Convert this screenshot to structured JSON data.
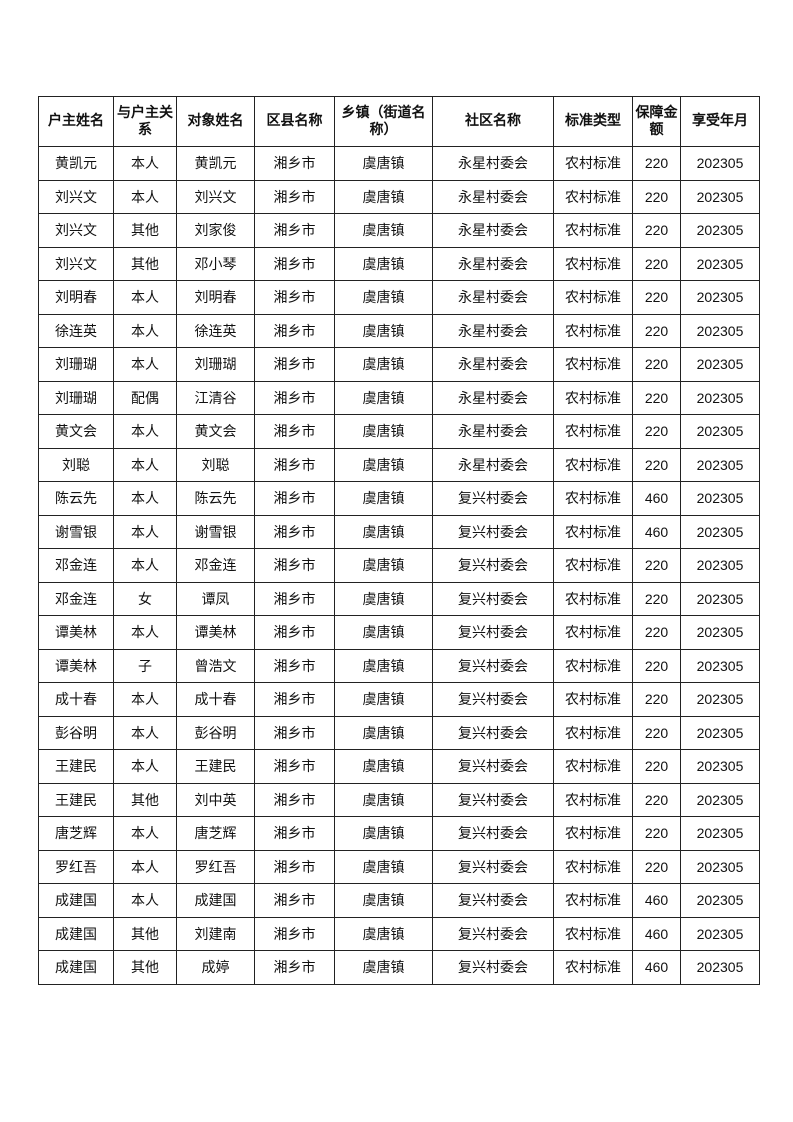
{
  "table": {
    "headers": [
      "户主姓名",
      "与户主关系",
      "对象姓名",
      "区县名称",
      "乡镇（街道名称）",
      "社区名称",
      "标准类型",
      "保障金额",
      "享受年月"
    ],
    "rows": [
      [
        "黄凯元",
        "本人",
        "黄凯元",
        "湘乡市",
        "虞唐镇",
        "永星村委会",
        "农村标准",
        "220",
        "202305"
      ],
      [
        "刘兴文",
        "本人",
        "刘兴文",
        "湘乡市",
        "虞唐镇",
        "永星村委会",
        "农村标准",
        "220",
        "202305"
      ],
      [
        "刘兴文",
        "其他",
        "刘家俊",
        "湘乡市",
        "虞唐镇",
        "永星村委会",
        "农村标准",
        "220",
        "202305"
      ],
      [
        "刘兴文",
        "其他",
        "邓小琴",
        "湘乡市",
        "虞唐镇",
        "永星村委会",
        "农村标准",
        "220",
        "202305"
      ],
      [
        "刘明春",
        "本人",
        "刘明春",
        "湘乡市",
        "虞唐镇",
        "永星村委会",
        "农村标准",
        "220",
        "202305"
      ],
      [
        "徐连英",
        "本人",
        "徐连英",
        "湘乡市",
        "虞唐镇",
        "永星村委会",
        "农村标准",
        "220",
        "202305"
      ],
      [
        "刘珊瑚",
        "本人",
        "刘珊瑚",
        "湘乡市",
        "虞唐镇",
        "永星村委会",
        "农村标准",
        "220",
        "202305"
      ],
      [
        "刘珊瑚",
        "配偶",
        "江清谷",
        "湘乡市",
        "虞唐镇",
        "永星村委会",
        "农村标准",
        "220",
        "202305"
      ],
      [
        "黄文会",
        "本人",
        "黄文会",
        "湘乡市",
        "虞唐镇",
        "永星村委会",
        "农村标准",
        "220",
        "202305"
      ],
      [
        "刘聪",
        "本人",
        "刘聪",
        "湘乡市",
        "虞唐镇",
        "永星村委会",
        "农村标准",
        "220",
        "202305"
      ],
      [
        "陈云先",
        "本人",
        "陈云先",
        "湘乡市",
        "虞唐镇",
        "复兴村委会",
        "农村标准",
        "460",
        "202305"
      ],
      [
        "谢雪银",
        "本人",
        "谢雪银",
        "湘乡市",
        "虞唐镇",
        "复兴村委会",
        "农村标准",
        "460",
        "202305"
      ],
      [
        "邓金连",
        "本人",
        "邓金连",
        "湘乡市",
        "虞唐镇",
        "复兴村委会",
        "农村标准",
        "220",
        "202305"
      ],
      [
        "邓金连",
        "女",
        "谭凤",
        "湘乡市",
        "虞唐镇",
        "复兴村委会",
        "农村标准",
        "220",
        "202305"
      ],
      [
        "谭美林",
        "本人",
        "谭美林",
        "湘乡市",
        "虞唐镇",
        "复兴村委会",
        "农村标准",
        "220",
        "202305"
      ],
      [
        "谭美林",
        "子",
        "曾浩文",
        "湘乡市",
        "虞唐镇",
        "复兴村委会",
        "农村标准",
        "220",
        "202305"
      ],
      [
        "成十春",
        "本人",
        "成十春",
        "湘乡市",
        "虞唐镇",
        "复兴村委会",
        "农村标准",
        "220",
        "202305"
      ],
      [
        "彭谷明",
        "本人",
        "彭谷明",
        "湘乡市",
        "虞唐镇",
        "复兴村委会",
        "农村标准",
        "220",
        "202305"
      ],
      [
        "王建民",
        "本人",
        "王建民",
        "湘乡市",
        "虞唐镇",
        "复兴村委会",
        "农村标准",
        "220",
        "202305"
      ],
      [
        "王建民",
        "其他",
        "刘中英",
        "湘乡市",
        "虞唐镇",
        "复兴村委会",
        "农村标准",
        "220",
        "202305"
      ],
      [
        "唐芝辉",
        "本人",
        "唐芝辉",
        "湘乡市",
        "虞唐镇",
        "复兴村委会",
        "农村标准",
        "220",
        "202305"
      ],
      [
        "罗红吾",
        "本人",
        "罗红吾",
        "湘乡市",
        "虞唐镇",
        "复兴村委会",
        "农村标准",
        "220",
        "202305"
      ],
      [
        "成建国",
        "本人",
        "成建国",
        "湘乡市",
        "虞唐镇",
        "复兴村委会",
        "农村标准",
        "460",
        "202305"
      ],
      [
        "成建国",
        "其他",
        "刘建南",
        "湘乡市",
        "虞唐镇",
        "复兴村委会",
        "农村标准",
        "460",
        "202305"
      ],
      [
        "成建国",
        "其他",
        "成婷",
        "湘乡市",
        "虞唐镇",
        "复兴村委会",
        "农村标准",
        "460",
        "202305"
      ]
    ]
  }
}
